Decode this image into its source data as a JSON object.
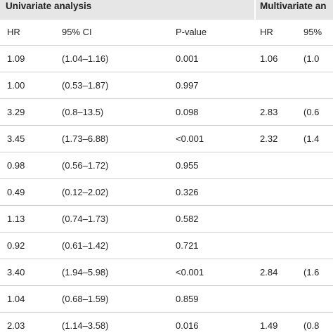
{
  "table": {
    "groups": [
      "Univariate analysis",
      "Multivariate an"
    ],
    "columns": [
      "HR",
      "95% CI",
      "P-value",
      "HR",
      "95%"
    ],
    "rows": [
      [
        "1.09",
        "(1.04–1.16)",
        "0.001",
        "1.06",
        "(1.0"
      ],
      [
        "1.00",
        "(0.53–1.87)",
        "0.997",
        null,
        null
      ],
      [
        "3.29",
        "(0.8–13.5)",
        "0.098",
        "2.83",
        "(0.6"
      ],
      [
        "3.45",
        "(1.73–6.88)",
        "<0.001",
        "2.32",
        "(1.4"
      ],
      [
        "0.98",
        "(0.56–1.72)",
        "0.955",
        null,
        null
      ],
      [
        "0.49",
        "(0.12–2.02)",
        "0.326",
        null,
        null
      ],
      [
        "1.13",
        "(0.74–1.73)",
        "0.582",
        null,
        null
      ],
      [
        "0.92",
        "(0.61–1.42)",
        "0.721",
        null,
        null
      ],
      [
        "3.40",
        "(1.94–5.98)",
        "<0.001",
        "2.84",
        "(1.6"
      ],
      [
        "1.04",
        "(0.68–1.59)",
        "0.859",
        null,
        null
      ],
      [
        "2.03",
        "(1.14–3.58)",
        "0.016",
        "1.49",
        "(0.8"
      ]
    ]
  }
}
